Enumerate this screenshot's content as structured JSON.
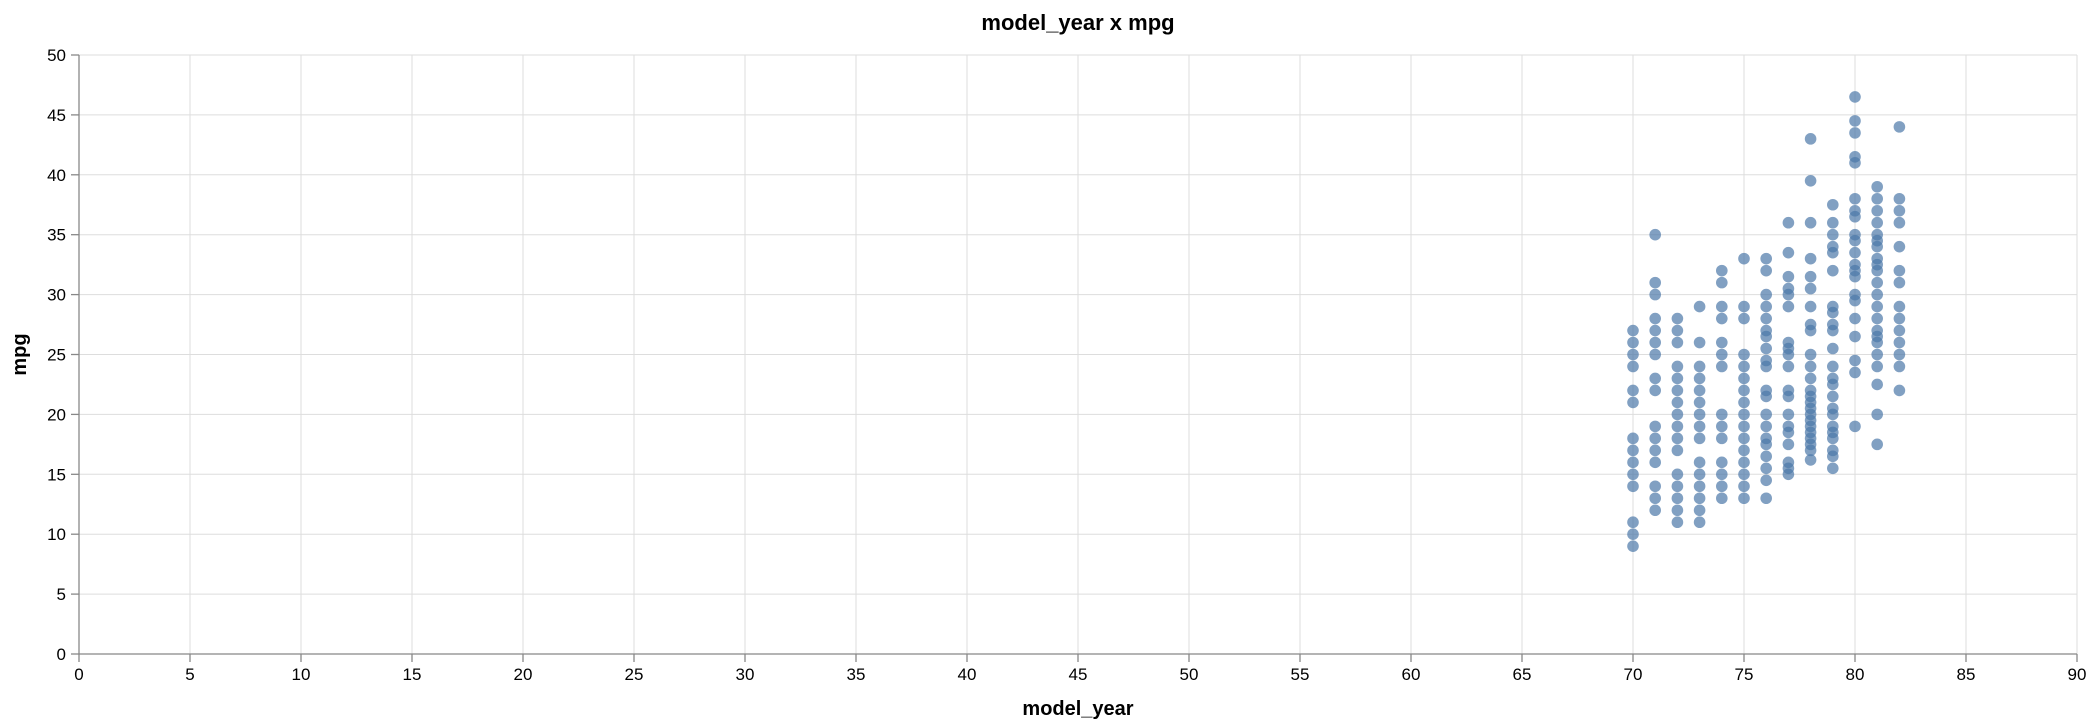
{
  "chart_data": {
    "type": "scatter",
    "title": "model_year x mpg",
    "xlabel": "model_year",
    "ylabel": "mpg",
    "xlim": [
      0,
      90
    ],
    "ylim": [
      0,
      50
    ],
    "x_ticks": [
      0,
      5,
      10,
      15,
      20,
      25,
      30,
      35,
      40,
      45,
      50,
      55,
      60,
      65,
      70,
      75,
      80,
      85,
      90
    ],
    "y_ticks": [
      0,
      5,
      10,
      15,
      20,
      25,
      30,
      35,
      40,
      45,
      50
    ],
    "grid": true,
    "color": "#4c78a8",
    "points_by_year": [
      {
        "x": 70,
        "y": [
          9,
          10,
          11,
          14,
          15,
          16,
          17,
          18,
          21,
          22,
          24,
          25,
          26,
          27
        ]
      },
      {
        "x": 71,
        "y": [
          12,
          13,
          14,
          16,
          17,
          18,
          19,
          22,
          23,
          25,
          26,
          27,
          28,
          30,
          31,
          35
        ]
      },
      {
        "x": 72,
        "y": [
          11,
          12,
          13,
          14,
          15,
          17,
          18,
          19,
          20,
          21,
          22,
          23,
          24,
          26,
          27,
          28
        ]
      },
      {
        "x": 73,
        "y": [
          11,
          12,
          13,
          14,
          15,
          16,
          18,
          19,
          20,
          21,
          22,
          23,
          24,
          26,
          29
        ]
      },
      {
        "x": 74,
        "y": [
          13,
          14,
          15,
          16,
          18,
          19,
          20,
          24,
          25,
          26,
          28,
          29,
          31,
          32
        ]
      },
      {
        "x": 75,
        "y": [
          13,
          14,
          15,
          16,
          17,
          18,
          19,
          20,
          21,
          22,
          23,
          24,
          25,
          28,
          29,
          33
        ]
      },
      {
        "x": 76,
        "y": [
          13,
          14.5,
          15.5,
          16.5,
          17.5,
          18,
          19,
          20,
          21.5,
          22,
          24,
          24.5,
          25.5,
          26.5,
          27,
          28,
          29,
          30,
          32,
          33
        ]
      },
      {
        "x": 77,
        "y": [
          15,
          15.5,
          16,
          17.5,
          18.5,
          19,
          20,
          21.5,
          22,
          24,
          25,
          25.5,
          26,
          29,
          30,
          30.5,
          31.5,
          33.5,
          36
        ]
      },
      {
        "x": 78,
        "y": [
          16.2,
          17,
          17.5,
          18,
          18.5,
          19,
          19.5,
          20,
          20.5,
          21,
          21.5,
          22,
          23,
          24,
          25,
          27,
          27.5,
          29,
          30.5,
          31.5,
          33,
          36,
          39.5,
          43
        ]
      },
      {
        "x": 79,
        "y": [
          15.5,
          16.5,
          17,
          18,
          18.5,
          19,
          20,
          20.5,
          21.5,
          22.5,
          23,
          24,
          25.5,
          27,
          27.5,
          28.5,
          29,
          32,
          33.5,
          34,
          35,
          36,
          37.5
        ]
      },
      {
        "x": 80,
        "y": [
          19,
          23.5,
          24.5,
          26.5,
          28,
          29.5,
          30,
          31.5,
          32,
          32.5,
          33.5,
          34.5,
          35,
          36.5,
          37,
          38,
          41,
          41.5,
          43.5,
          44.5,
          46.5
        ]
      },
      {
        "x": 81,
        "y": [
          17.5,
          20,
          22.5,
          24,
          25,
          26,
          26.5,
          27,
          28,
          29,
          30,
          31,
          32,
          32.5,
          33,
          34,
          34.5,
          35,
          36,
          37,
          38,
          39
        ]
      },
      {
        "x": 82,
        "y": [
          22,
          24,
          25,
          26,
          27,
          28,
          29,
          31,
          32,
          34,
          36,
          37,
          38,
          44
        ]
      }
    ]
  }
}
